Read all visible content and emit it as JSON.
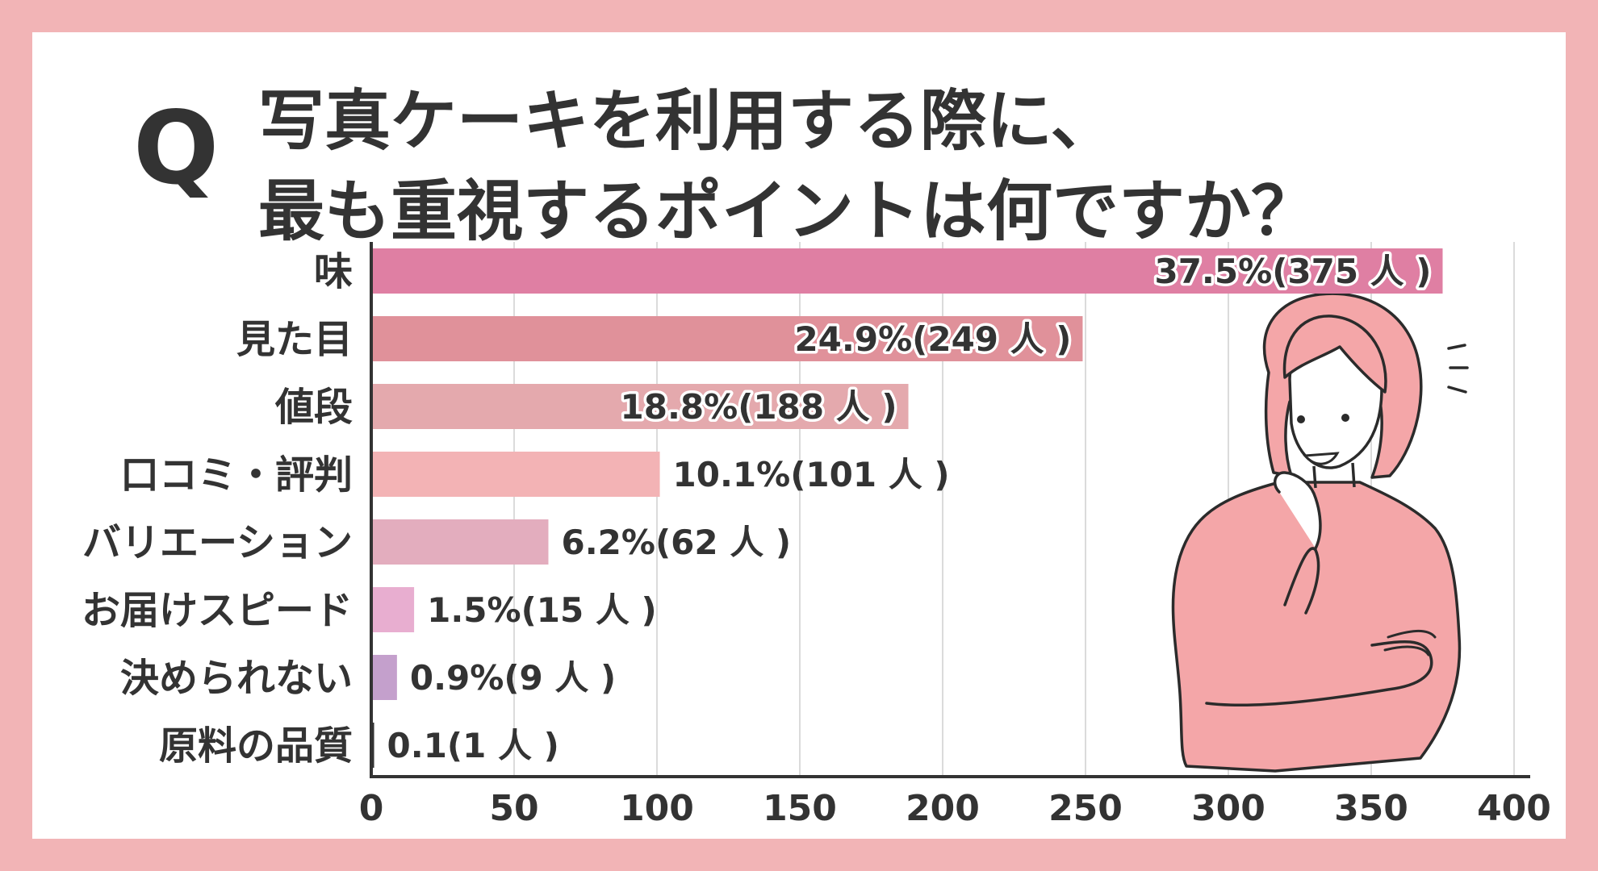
{
  "header": {
    "q_mark": "Q",
    "title_line1": "写真ケーキを利用する際に、",
    "title_line2": "最も重視するポイントは何ですか？"
  },
  "chart_data": {
    "type": "bar",
    "orientation": "horizontal",
    "categories": [
      "味",
      "見た目",
      "値段",
      "口コミ・評判",
      "バリエーション",
      "お届けスピード",
      "決められない",
      "原料の品質"
    ],
    "values": [
      375,
      249,
      188,
      101,
      62,
      15,
      9,
      1
    ],
    "data_labels": [
      "37.5%(375 人 )",
      "24.9%(249 人 )",
      "18.8%(188 人 )",
      "10.1%(101 人 )",
      "6.2%(62 人 )",
      "1.5%(15 人 )",
      "0.9%(9 人 )",
      "0.1(1 人 )"
    ],
    "bar_colors": [
      "#df7fa3",
      "#e0919a",
      "#e4a9ad",
      "#f3b3b5",
      "#e3adbe",
      "#e8aed0",
      "#c4a0cc",
      "#333333"
    ],
    "label_inside": [
      true,
      true,
      true,
      false,
      false,
      false,
      false,
      false
    ],
    "xlim": [
      0,
      400
    ],
    "x_ticks": [
      0,
      50,
      100,
      150,
      200,
      250,
      300,
      350,
      400
    ],
    "grid": true,
    "title": "",
    "xlabel": "",
    "ylabel": ""
  },
  "colors": {
    "background": "#f2b4b6",
    "card": "#ffffff",
    "text": "#333333",
    "grid": "#cfcfcf",
    "illustration_fill": "#f4a6a8",
    "illustration_stroke": "#2b2b2b"
  },
  "illustration": {
    "icon": "thinking-woman-icon"
  }
}
